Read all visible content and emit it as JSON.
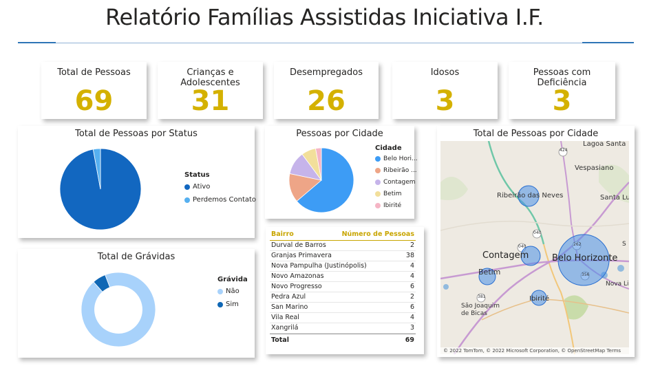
{
  "page": {
    "title": "Relatório Famílias Assistidas Iniciativa I.F."
  },
  "kpis": [
    {
      "label": "Total de Pessoas",
      "value": "69"
    },
    {
      "label": "Crianças e Adolescentes",
      "value": "31"
    },
    {
      "label": "Desempregados",
      "value": "26"
    },
    {
      "label": "Idosos",
      "value": "3"
    },
    {
      "label": "Pessoas com Deficiência",
      "value": "3"
    }
  ],
  "status_chart": {
    "title": "Total de Pessoas por Status",
    "legend_title": "Status",
    "items": [
      {
        "label": "Ativo",
        "color": "#1267c0"
      },
      {
        "label": "Perdemos Contato",
        "color": "#56b0f0"
      }
    ]
  },
  "cidade_chart": {
    "title": "Pessoas por Cidade",
    "legend_title": "Cidade",
    "items": [
      {
        "label": "Belo Hori...",
        "color": "#3d9cf5"
      },
      {
        "label": "Ribeirão ...",
        "color": "#eea587"
      },
      {
        "label": "Contagem",
        "color": "#c6b4ea"
      },
      {
        "label": "Betim",
        "color": "#f2df9b"
      },
      {
        "label": "Ibirité",
        "color": "#f5b5c5"
      }
    ]
  },
  "gravidas_chart": {
    "title": "Total de Grávidas",
    "legend_title": "Grávida",
    "items": [
      {
        "label": "Não",
        "color": "#a8d2fb"
      },
      {
        "label": "Sim",
        "color": "#0f67b5"
      }
    ]
  },
  "bairro_table": {
    "col1": "Bairro",
    "col2": "Número de Pessoas",
    "rows": [
      {
        "bairro": "Durval de Barros",
        "n": "2"
      },
      {
        "bairro": "Granjas Primavera",
        "n": "38"
      },
      {
        "bairro": "Nova Pampulha (Justinópolis)",
        "n": "4"
      },
      {
        "bairro": "Novo Amazonas",
        "n": "4"
      },
      {
        "bairro": "Novo Progresso",
        "n": "6"
      },
      {
        "bairro": "Pedra Azul",
        "n": "2"
      },
      {
        "bairro": "San Marino",
        "n": "6"
      },
      {
        "bairro": "Vila Real",
        "n": "4"
      },
      {
        "bairro": "Xangrilá",
        "n": "3"
      }
    ],
    "total_label": "Total",
    "total_value": "69"
  },
  "map": {
    "title": "Total de Pessoas por Cidade",
    "labels": {
      "lagoa_santa": "Lagoa Santa",
      "vespasiano": "Vespasiano",
      "ribeirao": "Ribeirão das Neves",
      "santa_luzia": "Santa Luz",
      "contagem": "Contagem",
      "belo_horizonte": "Belo Horizonte",
      "betim": "Betim",
      "ibirite": "Ibirité",
      "sao_joaquim": "São Joaquim de Bicas",
      "nova_lima": "Nova Lim",
      "sabara": "S",
      "road_424": "424",
      "road_040a": "040",
      "road_040b": "040",
      "road_262": "262",
      "road_381": "381",
      "road_356": "356"
    },
    "footer": "© 2022 TomTom, © 2022 Microsoft Corporation, © OpenStreetMap  Terms"
  },
  "chart_data": [
    {
      "type": "pie",
      "title": "Total de Pessoas por Status",
      "categories": [
        "Ativo",
        "Perdemos Contato"
      ],
      "values": [
        67,
        2
      ]
    },
    {
      "type": "pie",
      "title": "Pessoas por Cidade",
      "categories": [
        "Belo Hori...",
        "Ribeirão ...",
        "Contagem",
        "Betim",
        "Ibirité"
      ],
      "values": [
        44,
        10,
        8,
        5,
        2
      ]
    },
    {
      "type": "pie",
      "title": "Total de Grávidas",
      "categories": [
        "Não",
        "Sim"
      ],
      "values": [
        65,
        4
      ]
    }
  ]
}
